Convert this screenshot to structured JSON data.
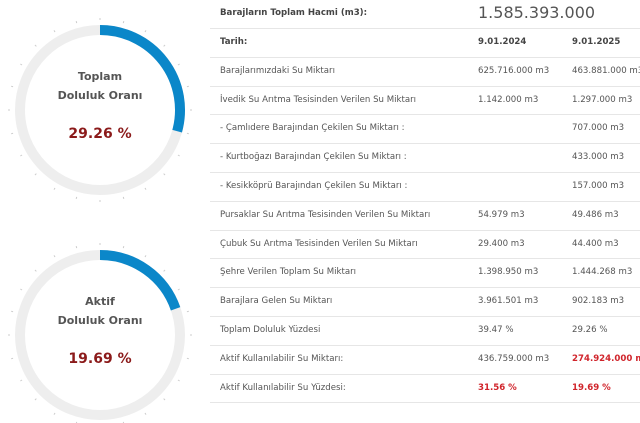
{
  "gauges": [
    {
      "title": [
        "Toplam",
        "Doluluk Oranı"
      ],
      "value": 29.26,
      "label": "29.26 %"
    },
    {
      "title": [
        "Aktif",
        "Doluluk Oranı"
      ],
      "value": 19.69,
      "label": "19.69 %"
    }
  ],
  "gauge_color": "#0b87c9",
  "header": {
    "label": "Barajların Toplam Hacmi (m3):",
    "value": "1.585.393.000"
  },
  "table": {
    "columns": [
      "Tarih:",
      "9.01.2024",
      "9.01.2025"
    ],
    "rows": [
      [
        "Barajlarımızdaki Su Miktarı",
        "625.716.000 m3",
        "463.881.000 m3"
      ],
      [
        "İvedik Su Arıtma Tesisinden Verilen Su Miktarı",
        "1.142.000 m3",
        "1.297.000 m3"
      ],
      [
        "- Çamlıdere Barajından Çekilen Su Miktarı :",
        null,
        "707.000 m3"
      ],
      [
        "- Kurtboğazı Barajından Çekilen Su Miktarı :",
        null,
        "433.000 m3"
      ],
      [
        "- Kesikköprü Barajından Çekilen Su Miktarı :",
        null,
        "157.000 m3"
      ],
      [
        "Pursaklar Su Arıtma Tesisinden Verilen Su Miktarı",
        "54.979 m3",
        "49.486 m3"
      ],
      [
        "Çubuk Su Arıtma Tesisinden Verilen Su Miktarı",
        "29.400 m3",
        "44.400 m3"
      ],
      [
        "Şehre Verilen Toplam Su Miktarı",
        "1.398.950 m3",
        "1.444.268 m3"
      ],
      [
        "Barajlara Gelen Su Miktarı",
        "3.961.501 m3",
        "902.183 m3"
      ],
      [
        "Toplam Doluluk Yüzdesi",
        "39.47 %",
        "29.26 %"
      ],
      [
        "Aktif Kullanılabilir Su Miktarı:",
        "436.759.000 m3",
        "274.924.000 m3"
      ],
      [
        "Aktif Kullanılabilir Su Yüzdesi:",
        "31.56 %",
        "19.69 %"
      ]
    ],
    "highlighted": [
      [
        10,
        2
      ],
      [
        11,
        1
      ],
      [
        11,
        2
      ]
    ],
    "highlight_color": "#d0242b"
  }
}
